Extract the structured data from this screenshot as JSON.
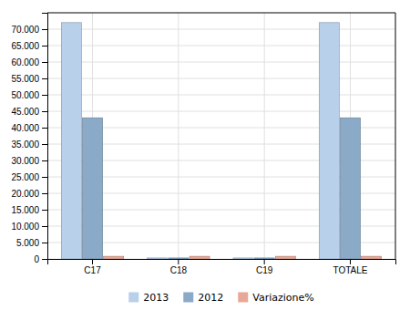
{
  "chart_data": {
    "type": "bar",
    "categories": [
      "C17",
      "C18",
      "C19",
      "TOTALE"
    ],
    "series": [
      {
        "name": "2013",
        "color": "#b8d0ea",
        "values": [
          72000,
          300,
          300,
          72000
        ]
      },
      {
        "name": "2012",
        "color": "#8aaac8",
        "values": [
          43000,
          300,
          300,
          43000
        ]
      },
      {
        "name": "Variazione%",
        "color": "#e8a898",
        "values": [
          800,
          800,
          800,
          800
        ]
      }
    ],
    "ylim": [
      0,
      75000
    ],
    "yticks": [
      0,
      {
        "value": 5000,
        "label": "5.000"
      },
      {
        "value": 10000,
        "label": "10.000"
      },
      {
        "value": 15000,
        "label": "15.000"
      },
      {
        "value": 20000,
        "label": "20.000"
      },
      {
        "value": 25000,
        "label": "25.000"
      },
      {
        "value": 30000,
        "label": "30.000"
      },
      {
        "value": 35000,
        "label": "35.000"
      },
      {
        "value": 40000,
        "label": "40.000"
      },
      {
        "value": 45000,
        "label": "45.000"
      },
      {
        "value": 50000,
        "label": "50.000"
      },
      {
        "value": 55000,
        "label": "55.000"
      },
      {
        "value": 60000,
        "label": "60.000"
      },
      {
        "value": 65000,
        "label": "65.000"
      },
      {
        "value": 70000,
        "label": "70.000"
      }
    ],
    "grid": true,
    "legend": "bottom"
  }
}
